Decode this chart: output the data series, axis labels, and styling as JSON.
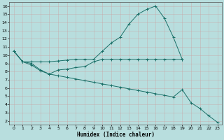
{
  "xlabel": "Humidex (Indice chaleur)",
  "bg_color": "#b8dede",
  "grid_color_major": "#c8c8c8",
  "grid_color_minor": "#d8d8d8",
  "line_color": "#1a7068",
  "xlim": [
    -0.5,
    23.5
  ],
  "ylim": [
    1.5,
    16.5
  ],
  "xticks": [
    0,
    1,
    2,
    3,
    4,
    5,
    6,
    7,
    8,
    9,
    10,
    11,
    12,
    13,
    14,
    15,
    16,
    17,
    18,
    19,
    20,
    21,
    22,
    23
  ],
  "yticks": [
    2,
    3,
    4,
    5,
    6,
    7,
    8,
    9,
    10,
    11,
    12,
    13,
    14,
    15,
    16
  ],
  "line1_x": [
    0,
    1,
    2,
    3,
    4,
    5,
    6,
    7,
    8,
    9,
    10,
    11,
    12,
    13,
    14,
    15,
    16,
    17,
    18,
    19
  ],
  "line1_y": [
    10.5,
    9.2,
    9.2,
    9.2,
    9.2,
    9.3,
    9.4,
    9.5,
    9.5,
    9.5,
    10.5,
    11.5,
    12.2,
    13.8,
    15.0,
    15.6,
    16.0,
    14.5,
    12.2,
    9.5
  ],
  "line2_x": [
    0,
    1,
    2,
    3,
    4,
    5,
    6,
    7,
    8,
    9,
    10,
    11,
    12,
    13,
    14,
    15,
    16,
    17,
    18,
    19
  ],
  "line2_y": [
    10.5,
    9.2,
    9.0,
    8.2,
    7.7,
    8.2,
    8.3,
    8.5,
    8.6,
    9.2,
    9.5,
    9.5,
    9.5,
    9.5,
    9.5,
    9.5,
    9.5,
    9.5,
    9.5,
    9.5
  ],
  "line3_x": [
    0,
    1,
    2,
    3,
    4,
    5,
    6,
    7,
    8,
    9,
    10,
    11,
    12,
    13,
    14,
    15,
    16,
    17,
    18,
    19,
    20,
    21,
    22,
    23
  ],
  "line3_y": [
    10.5,
    9.2,
    8.8,
    8.1,
    7.7,
    7.5,
    7.3,
    7.1,
    6.9,
    6.7,
    6.5,
    6.3,
    6.1,
    5.9,
    5.7,
    5.5,
    5.3,
    5.1,
    4.9,
    5.8,
    4.2,
    3.5,
    2.6,
    1.8
  ]
}
